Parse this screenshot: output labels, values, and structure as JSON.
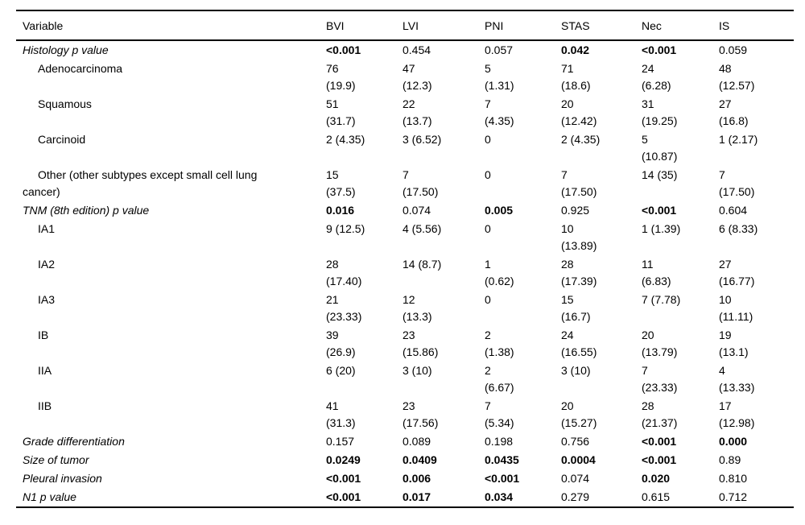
{
  "colors": {
    "text": "#000000",
    "rule": "#000000",
    "background": "#ffffff"
  },
  "table": {
    "columns": [
      "Variable",
      "BVI",
      "LVI",
      "PNI",
      "STAS",
      "Nec",
      "IS"
    ],
    "rows": [
      {
        "label": "Histology p value",
        "style": "section",
        "cells": [
          {
            "t": "<0.001",
            "b": true
          },
          {
            "t": "0.454"
          },
          {
            "t": "0.057"
          },
          {
            "t": "0.042",
            "b": true
          },
          {
            "t": "<0.001",
            "b": true
          },
          {
            "t": "0.059"
          }
        ]
      },
      {
        "label": "Adenocarcinoma",
        "style": "sub",
        "cells": [
          {
            "t": "76\n(19.9)"
          },
          {
            "t": "47\n(12.3)"
          },
          {
            "t": "5\n(1.31)"
          },
          {
            "t": "71\n(18.6)"
          },
          {
            "t": "24\n(6.28)"
          },
          {
            "t": "48\n(12.57)"
          }
        ]
      },
      {
        "label": "Squamous",
        "style": "sub",
        "cells": [
          {
            "t": "51\n(31.7)"
          },
          {
            "t": "22\n(13.7)"
          },
          {
            "t": "7\n(4.35)"
          },
          {
            "t": "20\n(12.42)"
          },
          {
            "t": "31\n(19.25)"
          },
          {
            "t": "27\n(16.8)"
          }
        ]
      },
      {
        "label": "Carcinoid",
        "style": "sub",
        "cells": [
          {
            "t": "2 (4.35)"
          },
          {
            "t": "3 (6.52)"
          },
          {
            "t": "0"
          },
          {
            "t": "2 (4.35)"
          },
          {
            "t": "5\n(10.87)"
          },
          {
            "t": "1 (2.17)"
          }
        ]
      },
      {
        "label": "Other (other subtypes except small cell lung\ncancer)",
        "style": "sub",
        "cells": [
          {
            "t": "15\n(37.5)"
          },
          {
            "t": "7\n(17.50)"
          },
          {
            "t": "0"
          },
          {
            "t": "7\n(17.50)"
          },
          {
            "t": "14 (35)"
          },
          {
            "t": "7\n(17.50)"
          }
        ]
      },
      {
        "label": "TNM (8th edition) p value",
        "style": "section",
        "cells": [
          {
            "t": "0.016",
            "b": true
          },
          {
            "t": "0.074"
          },
          {
            "t": "0.005",
            "b": true
          },
          {
            "t": "0.925"
          },
          {
            "t": "<0.001",
            "b": true
          },
          {
            "t": "0.604"
          }
        ]
      },
      {
        "label": "IA1",
        "style": "sub",
        "cells": [
          {
            "t": "9 (12.5)"
          },
          {
            "t": "4 (5.56)"
          },
          {
            "t": "0"
          },
          {
            "t": "10\n(13.89)"
          },
          {
            "t": "1 (1.39)"
          },
          {
            "t": "6 (8.33)"
          }
        ]
      },
      {
        "label": "IA2",
        "style": "sub",
        "cells": [
          {
            "t": "28\n(17.40)"
          },
          {
            "t": "14 (8.7)"
          },
          {
            "t": "1\n(0.62)"
          },
          {
            "t": "28\n(17.39)"
          },
          {
            "t": "11\n(6.83)"
          },
          {
            "t": "27\n(16.77)"
          }
        ]
      },
      {
        "label": "IA3",
        "style": "sub",
        "cells": [
          {
            "t": "21\n(23.33)"
          },
          {
            "t": "12\n(13.3)"
          },
          {
            "t": "0"
          },
          {
            "t": "15\n(16.7)"
          },
          {
            "t": "7 (7.78)"
          },
          {
            "t": "10\n(11.11)"
          }
        ]
      },
      {
        "label": "IB",
        "style": "sub",
        "cells": [
          {
            "t": "39\n(26.9)"
          },
          {
            "t": "23\n(15.86)"
          },
          {
            "t": "2\n(1.38)"
          },
          {
            "t": "24\n(16.55)"
          },
          {
            "t": "20\n(13.79)"
          },
          {
            "t": "19\n(13.1)"
          }
        ]
      },
      {
        "label": "IIA",
        "style": "sub",
        "cells": [
          {
            "t": "6 (20)"
          },
          {
            "t": "3 (10)"
          },
          {
            "t": "2\n(6.67)"
          },
          {
            "t": "3 (10)"
          },
          {
            "t": "7\n(23.33)"
          },
          {
            "t": "4\n(13.33)"
          }
        ]
      },
      {
        "label": "IIB",
        "style": "sub",
        "cells": [
          {
            "t": "41\n(31.3)"
          },
          {
            "t": "23\n(17.56)"
          },
          {
            "t": "7\n(5.34)"
          },
          {
            "t": "20\n(15.27)"
          },
          {
            "t": "28\n(21.37)"
          },
          {
            "t": "17\n(12.98)"
          }
        ]
      },
      {
        "label": "Grade differentiation",
        "style": "section",
        "cells": [
          {
            "t": "0.157"
          },
          {
            "t": "0.089"
          },
          {
            "t": "0.198"
          },
          {
            "t": "0.756"
          },
          {
            "t": "<0.001",
            "b": true
          },
          {
            "t": "0.000",
            "b": true
          }
        ]
      },
      {
        "label": "Size of tumor",
        "style": "section",
        "cells": [
          {
            "t": "0.0249",
            "b": true
          },
          {
            "t": "0.0409",
            "b": true
          },
          {
            "t": "0.0435",
            "b": true
          },
          {
            "t": "0.0004",
            "b": true
          },
          {
            "t": "<0.001",
            "b": true
          },
          {
            "t": "0.89"
          }
        ]
      },
      {
        "label": "Pleural invasion",
        "style": "section",
        "cells": [
          {
            "t": "<0.001",
            "b": true
          },
          {
            "t": "0.006",
            "b": true
          },
          {
            "t": "<0.001",
            "b": true
          },
          {
            "t": "0.074"
          },
          {
            "t": "0.020",
            "b": true
          },
          {
            "t": "0.810"
          }
        ]
      },
      {
        "label": "N1 p value",
        "style": "section",
        "cells": [
          {
            "t": "<0.001",
            "b": true
          },
          {
            "t": "0.017",
            "b": true
          },
          {
            "t": "0.034",
            "b": true
          },
          {
            "t": "0.279"
          },
          {
            "t": "0.615"
          },
          {
            "t": "0.712"
          }
        ]
      }
    ]
  }
}
